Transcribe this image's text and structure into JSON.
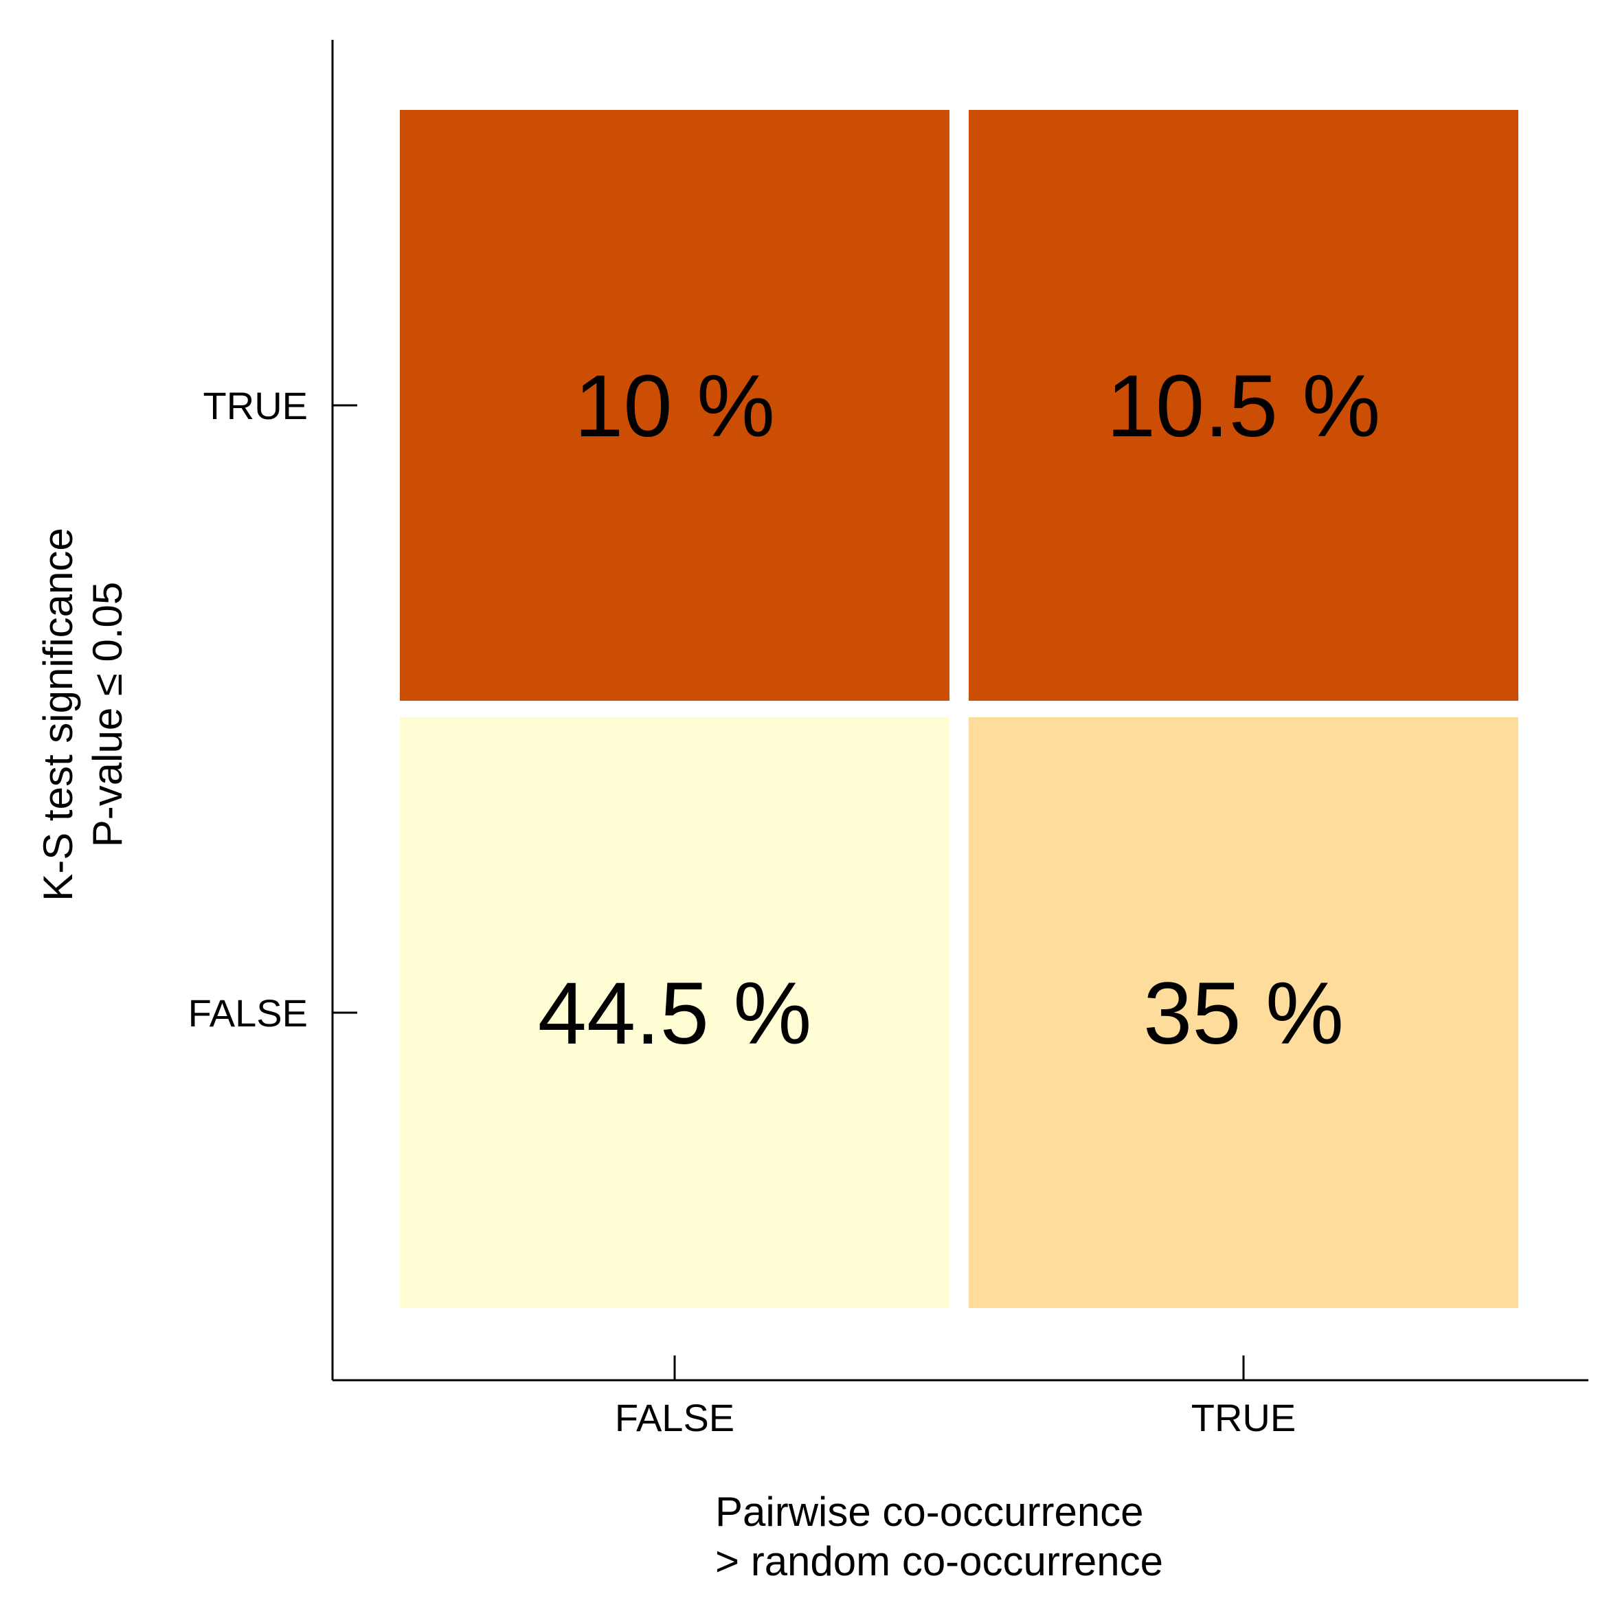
{
  "chart_data": {
    "type": "heatmap",
    "x_axis": {
      "label_lines": [
        "Pairwise co-occurrence",
        "> random co-occurrence"
      ],
      "categories": [
        "FALSE",
        "TRUE"
      ]
    },
    "y_axis": {
      "label_lines": [
        "K-S test significance",
        "P-value ≤ 0.05"
      ],
      "categories": [
        "TRUE",
        "FALSE"
      ]
    },
    "cells": [
      {
        "x": "FALSE",
        "y": "TRUE",
        "value": 10,
        "label": "10 %",
        "color": "#cc4e04"
      },
      {
        "x": "TRUE",
        "y": "TRUE",
        "value": 10.5,
        "label": "10.5 %",
        "color": "#cc4e04"
      },
      {
        "x": "FALSE",
        "y": "FALSE",
        "value": 44.5,
        "label": "44.5 %",
        "color": "#fefdd4"
      },
      {
        "x": "TRUE",
        "y": "FALSE",
        "value": 35,
        "label": "35 %",
        "color": "#fedc9b"
      }
    ],
    "grid": false,
    "legend": "none"
  }
}
